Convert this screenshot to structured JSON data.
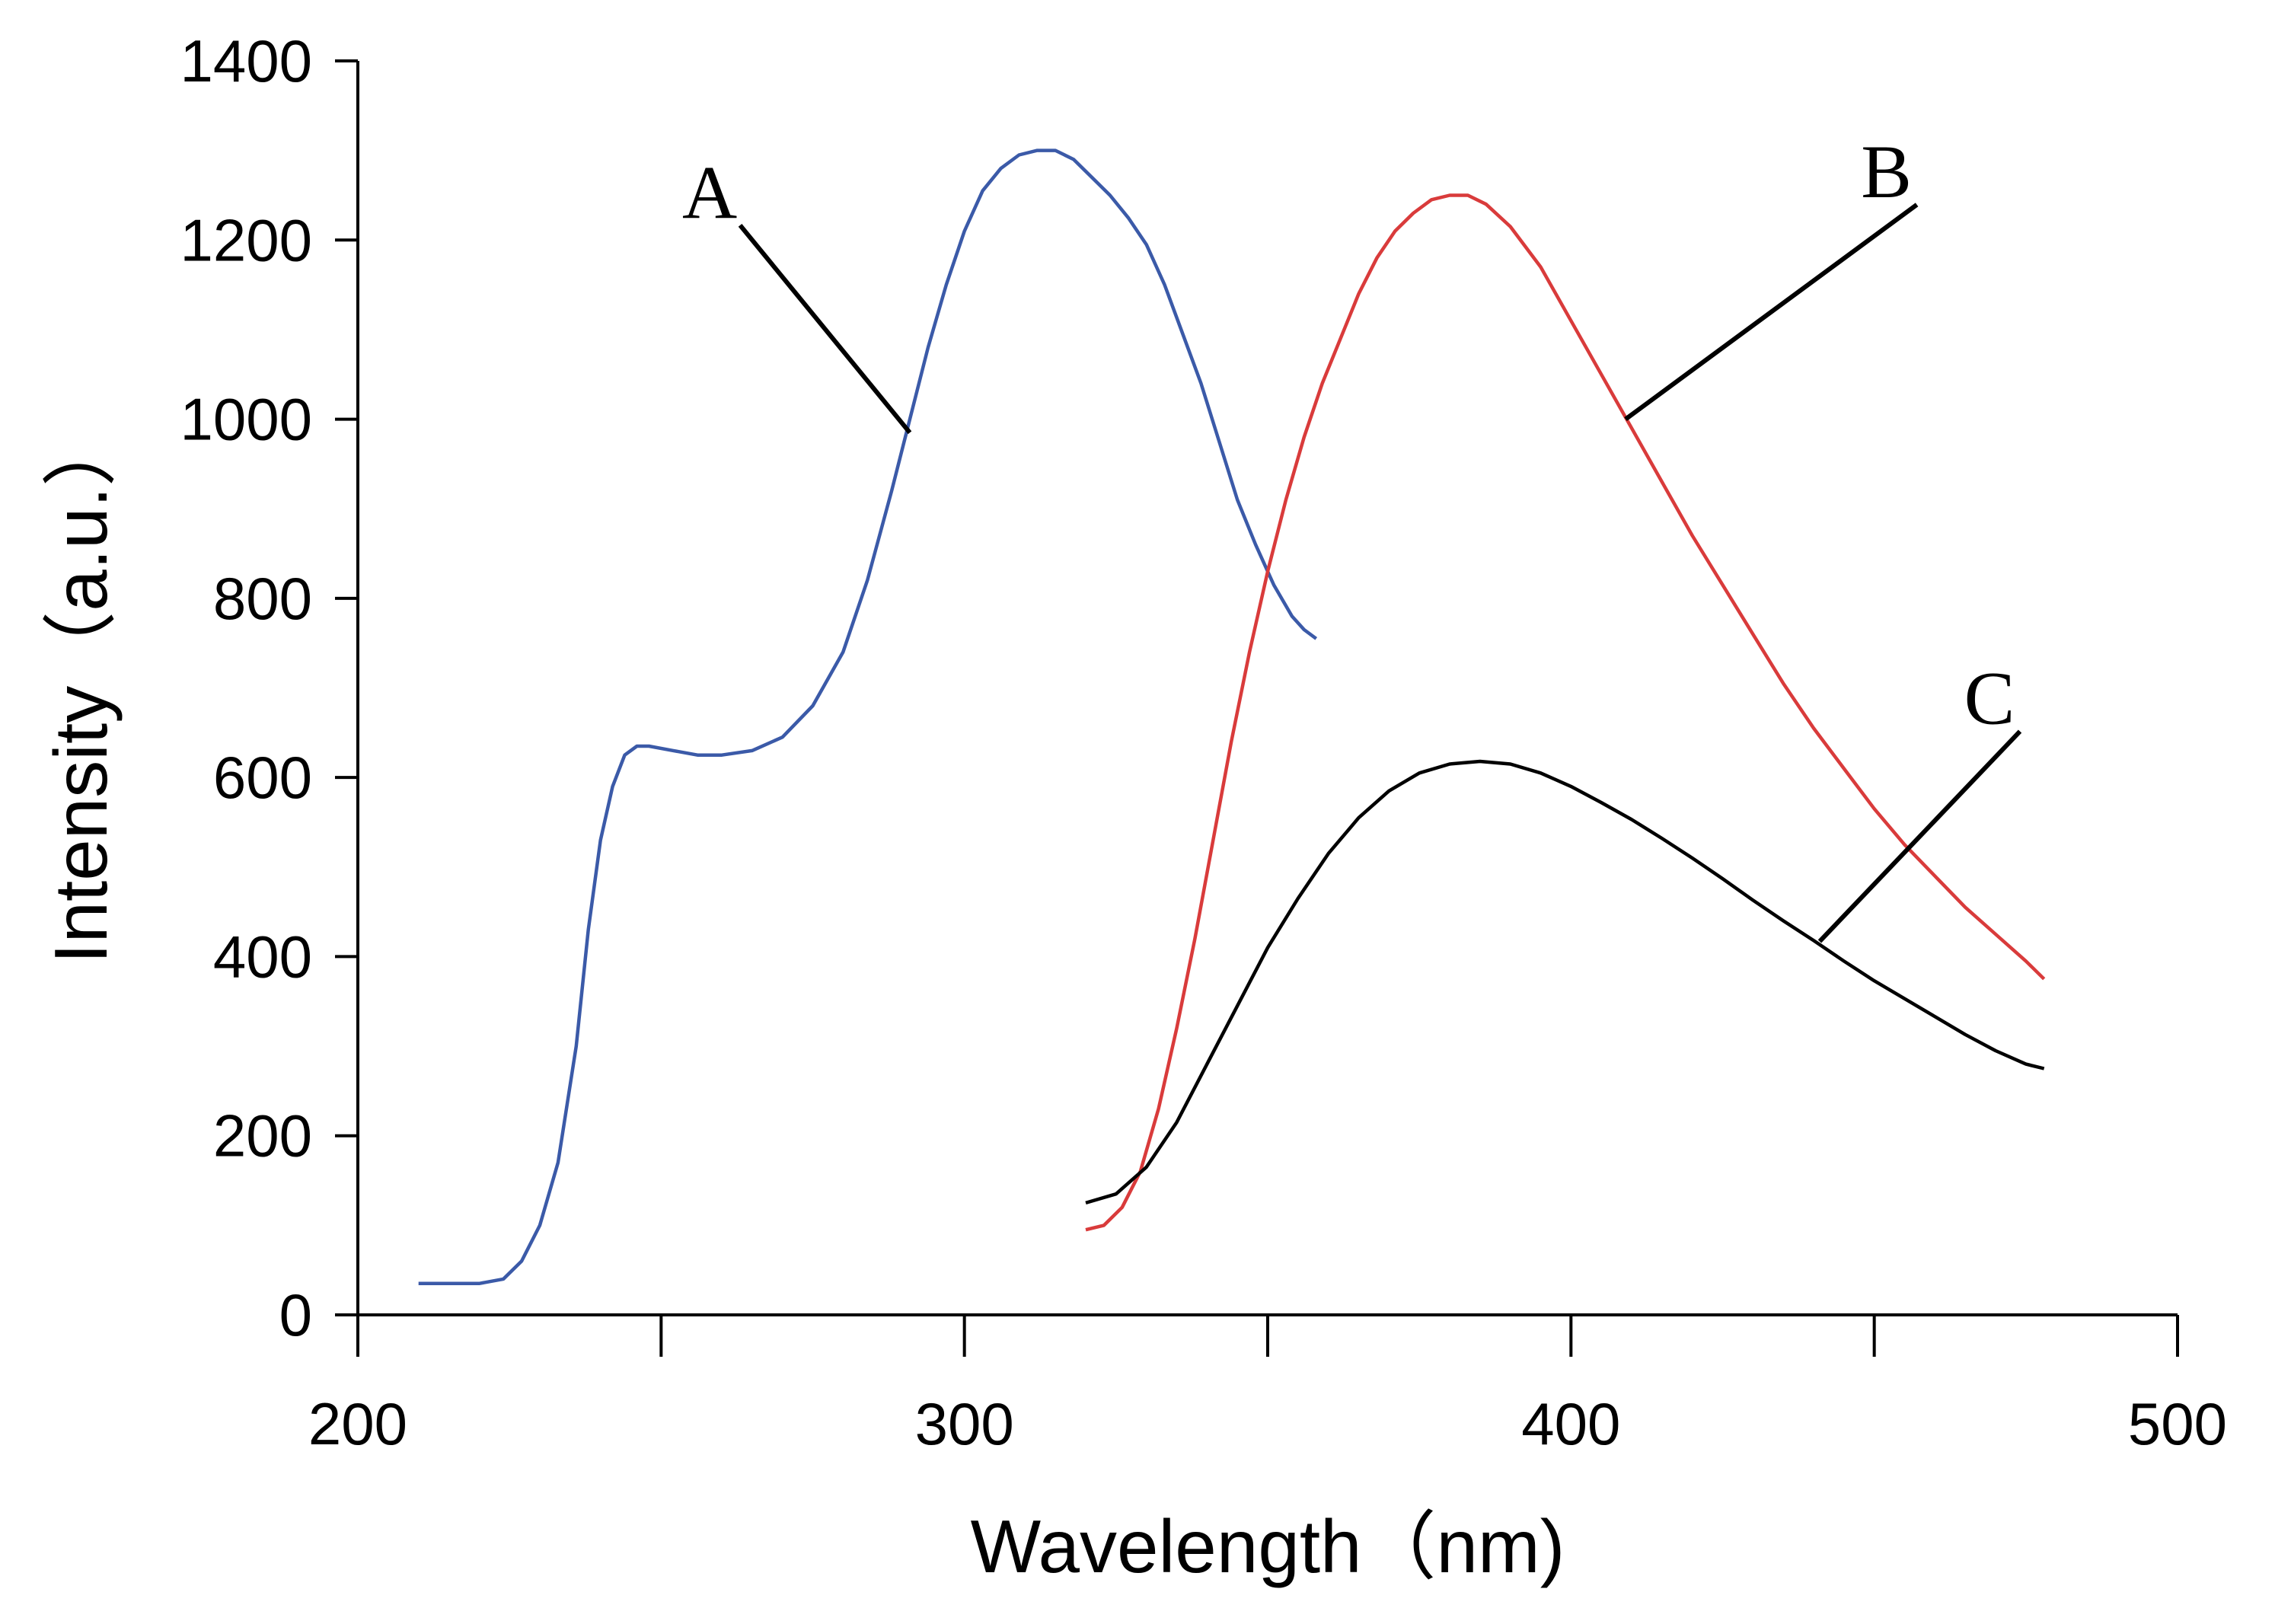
{
  "chart_data": {
    "type": "line",
    "title": "",
    "xlabel": "Wavelength（nm)",
    "ylabel": "Intensity（a.u.）",
    "xlim": [
      200,
      500
    ],
    "ylim": [
      0,
      1400
    ],
    "x_ticks": [
      200,
      300,
      400,
      500
    ],
    "x_minor_ticks": [
      250,
      350,
      450
    ],
    "y_ticks": [
      0,
      200,
      400,
      600,
      800,
      1000,
      1200,
      1400
    ],
    "grid": false,
    "series": [
      {
        "name": "A",
        "color": "#3b5aa8",
        "x": [
          210,
          215,
          220,
          224,
          227,
          230,
          233,
          236,
          238,
          240,
          242,
          244,
          246,
          248,
          252,
          256,
          260,
          265,
          270,
          275,
          280,
          284,
          288,
          291,
          294,
          297,
          300,
          303,
          306,
          309,
          312,
          315,
          318,
          321,
          324,
          327,
          330,
          333,
          336,
          339,
          342,
          345,
          348,
          351,
          354,
          356,
          358
        ],
        "values": [
          35,
          35,
          35,
          40,
          60,
          100,
          170,
          300,
          430,
          530,
          590,
          625,
          635,
          635,
          630,
          625,
          625,
          630,
          645,
          680,
          740,
          820,
          920,
          1000,
          1080,
          1150,
          1210,
          1255,
          1280,
          1295,
          1300,
          1300,
          1290,
          1270,
          1250,
          1225,
          1195,
          1150,
          1095,
          1040,
          975,
          910,
          860,
          815,
          780,
          765,
          755
        ]
      },
      {
        "name": "B",
        "color": "#d93b3b",
        "x": [
          320,
          323,
          326,
          329,
          332,
          335,
          338,
          341,
          344,
          347,
          350,
          353,
          356,
          359,
          362,
          365,
          368,
          371,
          374,
          377,
          380,
          383,
          386,
          390,
          395,
          400,
          405,
          410,
          415,
          420,
          425,
          430,
          435,
          440,
          445,
          450,
          455,
          460,
          465,
          470,
          475,
          478
        ],
        "values": [
          95,
          100,
          120,
          160,
          230,
          320,
          420,
          530,
          640,
          740,
          830,
          910,
          980,
          1040,
          1090,
          1140,
          1180,
          1210,
          1230,
          1245,
          1250,
          1250,
          1240,
          1215,
          1170,
          1110,
          1050,
          990,
          930,
          870,
          815,
          760,
          705,
          655,
          610,
          565,
          525,
          490,
          455,
          425,
          395,
          375
        ]
      },
      {
        "name": "C",
        "color": "#000000",
        "x": [
          320,
          325,
          330,
          335,
          340,
          345,
          350,
          355,
          360,
          365,
          370,
          375,
          380,
          385,
          390,
          395,
          400,
          405,
          410,
          415,
          420,
          425,
          430,
          435,
          440,
          445,
          450,
          455,
          460,
          465,
          470,
          475,
          478
        ],
        "values": [
          125,
          135,
          165,
          215,
          280,
          345,
          410,
          465,
          515,
          555,
          585,
          605,
          615,
          618,
          615,
          605,
          590,
          572,
          553,
          532,
          510,
          487,
          463,
          440,
          418,
          395,
          373,
          353,
          333,
          313,
          295,
          280,
          275
        ]
      }
    ],
    "annotations": [
      {
        "text": "A",
        "series": "A",
        "x": 291,
        "y": 985,
        "label_x": 258,
        "label_y": 1225
      },
      {
        "text": "B",
        "series": "B",
        "x": 409,
        "y": 1000,
        "label_x": 452,
        "label_y": 1248
      },
      {
        "text": "C",
        "series": "C",
        "x": 441,
        "y": 417,
        "label_x": 469,
        "label_y": 660
      }
    ]
  }
}
